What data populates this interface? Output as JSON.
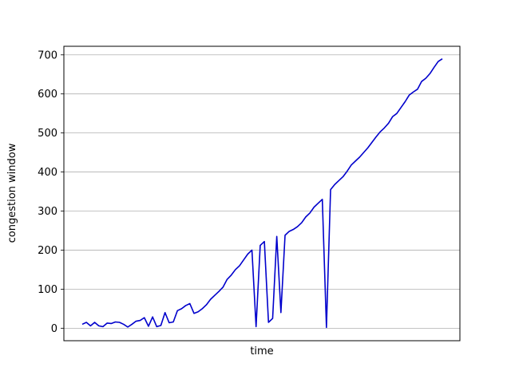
{
  "chart_data": {
    "type": "line",
    "title": "",
    "xlabel": "time",
    "ylabel": "congestion window",
    "grid": "horizontal",
    "ylim": [
      -32,
      722
    ],
    "yticks": [
      0,
      100,
      200,
      300,
      400,
      500,
      600,
      700
    ],
    "xticks": [],
    "line_color": "#0000cc",
    "grid_color": "#b0b0b0",
    "series": [
      {
        "values": [
          10,
          15,
          6,
          15,
          6,
          4,
          13,
          12,
          16,
          15,
          10,
          3,
          10,
          18,
          20,
          27,
          5,
          29,
          4,
          7,
          40,
          14,
          16,
          45,
          50,
          58,
          63,
          38,
          42,
          50,
          60,
          74,
          84,
          94,
          105,
          125,
          136,
          150,
          160,
          175,
          190,
          200,
          4,
          212,
          222,
          15,
          25,
          235,
          40,
          238,
          248,
          253,
          260,
          270,
          285,
          295,
          310,
          320,
          330,
          2,
          355,
          368,
          378,
          388,
          402,
          418,
          428,
          438,
          450,
          462,
          476,
          490,
          503,
          513,
          525,
          542,
          550,
          565,
          580,
          597,
          605,
          612,
          632,
          640,
          652,
          668,
          683,
          690
        ]
      }
    ]
  }
}
